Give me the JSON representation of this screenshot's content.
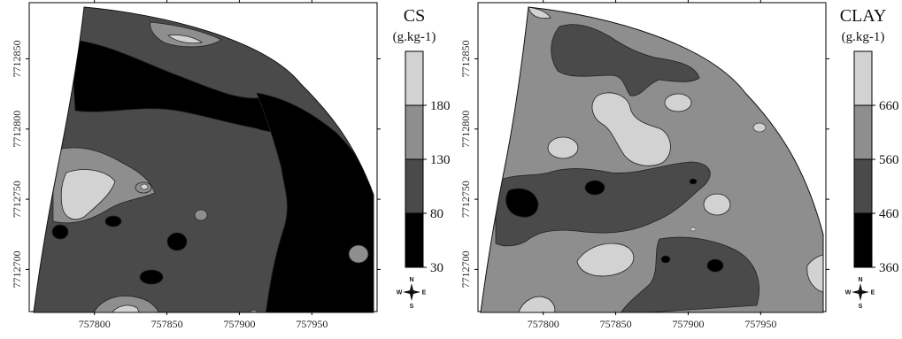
{
  "chart_data": [
    {
      "type": "heatmap",
      "title": "",
      "variable": "CS",
      "unit": "(g.kg-1)",
      "x_ticks": [
        "757800",
        "757850",
        "757900",
        "757950"
      ],
      "y_ticks": [
        "7712700",
        "7712750",
        "7712800",
        "7712850"
      ],
      "xlim": [
        757755,
        757995
      ],
      "ylim": [
        7712670,
        7712890
      ],
      "legend": {
        "breaks": [
          "30",
          "80",
          "130",
          "180"
        ],
        "classes": [
          {
            "range": [
              30,
              80
            ],
            "color": "#000000"
          },
          {
            "range": [
              80,
              130
            ],
            "color": "#4a4a4a"
          },
          {
            "range": [
              130,
              180
            ],
            "color": "#8e8e8e"
          },
          {
            "range": [
              180,
              230
            ],
            "color": "#d2d2d2"
          }
        ]
      },
      "compass": [
        "N",
        "E",
        "S",
        "W"
      ]
    },
    {
      "type": "heatmap",
      "title": "",
      "variable": "CLAY",
      "unit": "(g.kg-1)",
      "x_ticks": [
        "757800",
        "757850",
        "757900",
        "757950"
      ],
      "y_ticks": [
        "7712700",
        "7712750",
        "7712800",
        "7712850"
      ],
      "xlim": [
        757755,
        757995
      ],
      "ylim": [
        7712670,
        7712890
      ],
      "legend": {
        "breaks": [
          "360",
          "460",
          "560",
          "660"
        ],
        "classes": [
          {
            "range": [
              360,
              460
            ],
            "color": "#000000"
          },
          {
            "range": [
              460,
              560
            ],
            "color": "#4a4a4a"
          },
          {
            "range": [
              560,
              660
            ],
            "color": "#8e8e8e"
          },
          {
            "range": [
              660,
              760
            ],
            "color": "#d2d2d2"
          }
        ]
      },
      "compass": [
        "N",
        "E",
        "S",
        "W"
      ]
    }
  ]
}
